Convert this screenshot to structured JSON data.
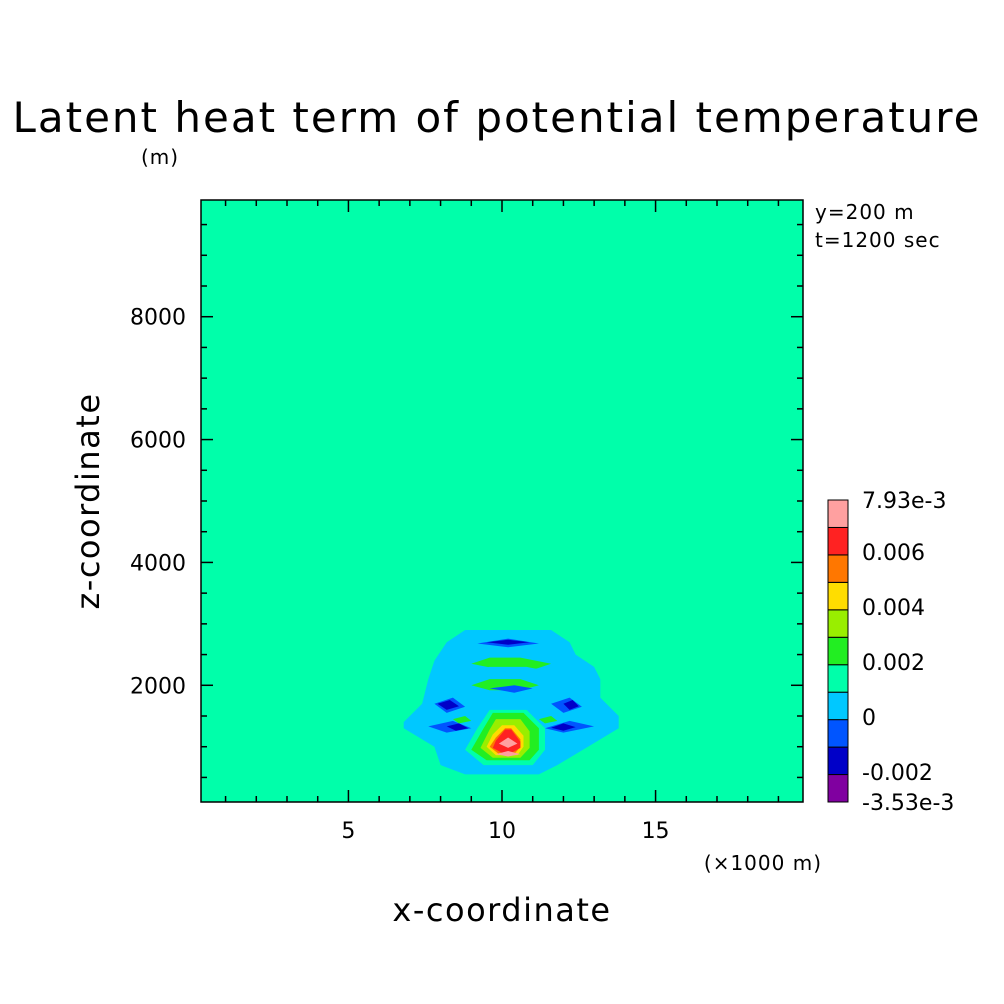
{
  "chart_data": {
    "type": "heatmap",
    "title": "Latent heat term of potential temperature",
    "xlabel": "x-coordinate",
    "ylabel": "z-coordinate",
    "x_unit_label": "(×1000 m)",
    "y_unit_label": "(m)",
    "annotations": [
      "y=200 m",
      "t=1200 sec"
    ],
    "xlim": [
      0.2,
      19.8
    ],
    "ylim": [
      100,
      9900
    ],
    "x_ticks": [
      5,
      10,
      15
    ],
    "y_ticks": [
      2000,
      4000,
      6000,
      8000
    ],
    "background_level_color": "#00ffaa",
    "colorbar": {
      "range": [
        -0.00353,
        0.00793
      ],
      "labels": [
        "7.93e-3",
        "0.006",
        "0.004",
        "0.002",
        "0",
        "-0.002",
        "-3.53e-3"
      ],
      "colors": [
        "#8000a0",
        "#0000c8",
        "#0055ff",
        "#00c8ff",
        "#00ffaa",
        "#22ee22",
        "#99ee00",
        "#ffdd00",
        "#ff7700",
        "#ff2222",
        "#ffa0a0"
      ]
    },
    "contour_regions": [
      {
        "level": "0 to -0.001",
        "color": "#00c8ff",
        "points": [
          [
            8.2,
            2700
          ],
          [
            8.8,
            2900
          ],
          [
            11.6,
            2900
          ],
          [
            12.2,
            2700
          ],
          [
            12.4,
            2500
          ],
          [
            13.0,
            2300
          ],
          [
            13.2,
            2100
          ],
          [
            13.2,
            1800
          ],
          [
            13.8,
            1500
          ],
          [
            13.8,
            1300
          ],
          [
            12.8,
            1000
          ],
          [
            11.8,
            700
          ],
          [
            11.2,
            550
          ],
          [
            8.8,
            550
          ],
          [
            8.0,
            700
          ],
          [
            7.8,
            1000
          ],
          [
            6.8,
            1300
          ],
          [
            6.8,
            1400
          ],
          [
            7.4,
            1700
          ],
          [
            7.6,
            2100
          ],
          [
            7.8,
            2400
          ]
        ]
      },
      {
        "level": "0.000 to 0.001",
        "color": "#00ffaa",
        "points": [
          [
            9.2,
            1300
          ],
          [
            9.6,
            1600
          ],
          [
            10.8,
            1600
          ],
          [
            11.4,
            1300
          ],
          [
            11.4,
            950
          ],
          [
            11.0,
            700
          ],
          [
            9.4,
            700
          ],
          [
            8.8,
            950
          ]
        ]
      },
      {
        "level": "0.001 to 0.002",
        "color": "#22ee22",
        "points": [
          [
            9.4,
            1300
          ],
          [
            9.7,
            1550
          ],
          [
            10.7,
            1550
          ],
          [
            11.2,
            1300
          ],
          [
            11.2,
            950
          ],
          [
            10.9,
            780
          ],
          [
            9.5,
            780
          ],
          [
            9.0,
            950
          ]
        ]
      },
      {
        "level": "0.002 to 0.003",
        "color": "#99ee00",
        "points": [
          [
            9.6,
            1280
          ],
          [
            9.8,
            1450
          ],
          [
            10.6,
            1450
          ],
          [
            10.9,
            1250
          ],
          [
            10.9,
            980
          ],
          [
            10.6,
            820
          ],
          [
            9.7,
            820
          ],
          [
            9.3,
            980
          ]
        ]
      },
      {
        "level": "0.003 to 0.004",
        "color": "#ffdd00",
        "points": [
          [
            9.7,
            1200
          ],
          [
            10.0,
            1350
          ],
          [
            10.4,
            1350
          ],
          [
            10.7,
            1180
          ],
          [
            10.7,
            1000
          ],
          [
            10.5,
            860
          ],
          [
            9.8,
            860
          ],
          [
            9.5,
            1000
          ]
        ]
      },
      {
        "level": "0.004 to 0.005",
        "color": "#ff7700",
        "points": [
          [
            9.8,
            1150
          ],
          [
            10.1,
            1300
          ],
          [
            10.3,
            1300
          ],
          [
            10.6,
            1120
          ],
          [
            10.6,
            1000
          ],
          [
            10.4,
            880
          ],
          [
            9.9,
            880
          ],
          [
            9.6,
            1000
          ]
        ]
      },
      {
        "level": "0.006 to 0.007",
        "color": "#ff2222",
        "points": [
          [
            9.8,
            1100
          ],
          [
            10.1,
            1280
          ],
          [
            10.3,
            1280
          ],
          [
            10.6,
            1080
          ],
          [
            10.6,
            980
          ],
          [
            10.3,
            900
          ],
          [
            10.0,
            900
          ],
          [
            9.7,
            980
          ]
        ]
      },
      {
        "level": "0.007 to 0.0079",
        "color": "#ffa0a0",
        "points": [
          [
            9.9,
            1050
          ],
          [
            10.2,
            1150
          ],
          [
            10.5,
            1050
          ],
          [
            10.2,
            980
          ]
        ]
      },
      {
        "level": "0.007 to 0.0079",
        "color": "#ffa0a0",
        "points": [
          [
            9.8,
            880
          ],
          [
            10.2,
            930
          ],
          [
            10.6,
            880
          ],
          [
            10.2,
            840
          ]
        ]
      },
      {
        "level": "0.001 to 0.002",
        "color": "#22ee22",
        "points": [
          [
            9.0,
            2350
          ],
          [
            9.6,
            2450
          ],
          [
            10.6,
            2450
          ],
          [
            11.6,
            2350
          ],
          [
            11.0,
            2250
          ],
          [
            10.0,
            2250
          ]
        ]
      },
      {
        "level": "0.001 to 0.002",
        "color": "#22ee22",
        "points": [
          [
            9.0,
            2000
          ],
          [
            9.6,
            2100
          ],
          [
            10.6,
            2100
          ],
          [
            11.2,
            2000
          ],
          [
            10.6,
            1920
          ],
          [
            9.6,
            1920
          ]
        ]
      },
      {
        "level": "-0.001 to -0.002",
        "color": "#0055ff",
        "points": [
          [
            9.2,
            2680
          ],
          [
            10.2,
            2760
          ],
          [
            11.2,
            2680
          ],
          [
            10.2,
            2620
          ]
        ]
      },
      {
        "level": "-0.001 to -0.002",
        "color": "#0055ff",
        "points": [
          [
            7.8,
            1700
          ],
          [
            8.4,
            1800
          ],
          [
            8.8,
            1650
          ],
          [
            8.2,
            1550
          ]
        ]
      },
      {
        "level": "-0.001 to -0.002",
        "color": "#0055ff",
        "points": [
          [
            11.6,
            1700
          ],
          [
            12.2,
            1800
          ],
          [
            12.6,
            1650
          ],
          [
            12.0,
            1550
          ]
        ]
      },
      {
        "level": "-0.001 to -0.002",
        "color": "#0055ff",
        "points": [
          [
            7.6,
            1330
          ],
          [
            8.4,
            1420
          ],
          [
            9.0,
            1300
          ],
          [
            8.2,
            1230
          ]
        ]
      },
      {
        "level": "-0.001 to -0.002",
        "color": "#0055ff",
        "points": [
          [
            11.4,
            1300
          ],
          [
            12.2,
            1420
          ],
          [
            13.0,
            1330
          ],
          [
            12.0,
            1230
          ]
        ]
      },
      {
        "level": "-0.001 to -0.002",
        "color": "#0055ff",
        "points": [
          [
            9.6,
            1950
          ],
          [
            10.4,
            2000
          ],
          [
            11.0,
            1950
          ],
          [
            10.4,
            1880
          ]
        ]
      },
      {
        "level": "-0.002 to -0.003",
        "color": "#0000c8",
        "points": [
          [
            9.5,
            2700
          ],
          [
            10.2,
            2740
          ],
          [
            10.9,
            2700
          ],
          [
            10.2,
            2660
          ]
        ]
      },
      {
        "level": "-0.002 to -0.003",
        "color": "#0000c8",
        "points": [
          [
            7.9,
            1700
          ],
          [
            8.3,
            1760
          ],
          [
            8.6,
            1660
          ],
          [
            8.2,
            1600
          ]
        ]
      },
      {
        "level": "-0.002 to -0.003",
        "color": "#0000c8",
        "points": [
          [
            12.0,
            1700
          ],
          [
            12.3,
            1760
          ],
          [
            12.5,
            1660
          ],
          [
            12.2,
            1600
          ]
        ]
      },
      {
        "level": "-0.002 to -0.003",
        "color": "#0000c8",
        "points": [
          [
            8.2,
            1330
          ],
          [
            8.6,
            1380
          ],
          [
            8.9,
            1300
          ],
          [
            8.5,
            1260
          ]
        ]
      },
      {
        "level": "-0.002 to -0.003",
        "color": "#0000c8",
        "points": [
          [
            11.6,
            1310
          ],
          [
            12.0,
            1380
          ],
          [
            12.4,
            1320
          ],
          [
            12.0,
            1260
          ]
        ]
      },
      {
        "level": "0 to -0.001",
        "color": "#00c8ff",
        "points": [
          [
            8.6,
            2220
          ],
          [
            9.6,
            2300
          ],
          [
            10.8,
            2300
          ],
          [
            11.6,
            2220
          ],
          [
            11.0,
            2150
          ],
          [
            9.6,
            2150
          ]
        ]
      },
      {
        "level": "0.001 to 0.002",
        "color": "#22ee22",
        "points": [
          [
            8.4,
            1450
          ],
          [
            8.8,
            1500
          ],
          [
            9.0,
            1420
          ],
          [
            8.6,
            1380
          ]
        ]
      },
      {
        "level": "0.001 to 0.002",
        "color": "#22ee22",
        "points": [
          [
            11.2,
            1450
          ],
          [
            11.6,
            1500
          ],
          [
            11.8,
            1420
          ],
          [
            11.4,
            1380
          ]
        ]
      }
    ]
  }
}
